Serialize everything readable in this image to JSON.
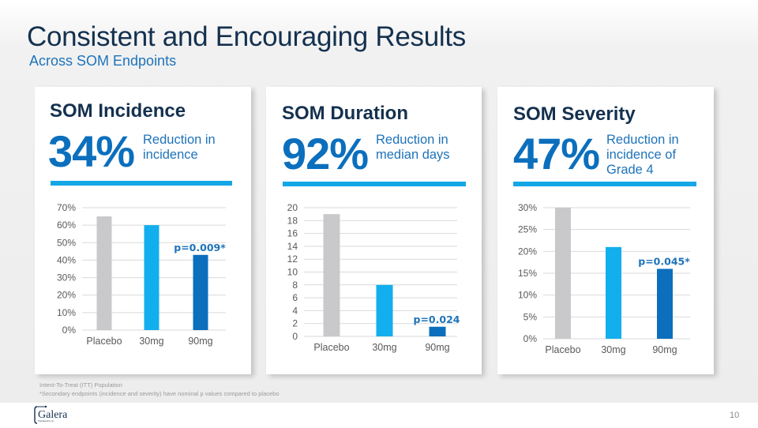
{
  "slide": {
    "title": "Consistent and Encouraging Results",
    "subtitle": "Across SOM Endpoints",
    "footnotes": [
      "Intent-To-Treat (ITT) Population",
      "*Secondary endpoints (incidence and severity) have nominal p values compared to placebo"
    ],
    "logo_text": "Galera",
    "logo_subtext": "Therapeutics, Inc.",
    "page_number": "10"
  },
  "cards": [
    {
      "title": "SOM Incidence",
      "stat": "34%",
      "stat_desc": [
        "Reduction in",
        "incidence"
      ]
    },
    {
      "title": "SOM Duration",
      "stat": "92%",
      "stat_desc": [
        "Reduction in",
        "median days"
      ]
    },
    {
      "title": "SOM Severity",
      "stat": "47%",
      "stat_desc": [
        "Reduction in",
        "incidence of",
        "Grade 4"
      ]
    }
  ],
  "colors": {
    "placebo": "#c9c9cb",
    "dose_30mg": "#13aeee",
    "dose_90mg": "#0b6fbd",
    "gridline": "#d9d9d9",
    "pvalue": "#1e73b9"
  },
  "chart_data": [
    {
      "type": "bar",
      "title": "SOM Incidence",
      "categories": [
        "Placebo",
        "30mg",
        "90mg"
      ],
      "values": [
        65,
        60,
        43
      ],
      "ylim": [
        0,
        70
      ],
      "yticks": [
        0,
        10,
        20,
        30,
        40,
        50,
        60,
        70
      ],
      "ytick_labels": [
        "0%",
        "10%",
        "20%",
        "30%",
        "40%",
        "50%",
        "60%",
        "70%"
      ],
      "unit": "%",
      "grid": true,
      "annotation": {
        "category": "90mg",
        "text": "p=0.009*"
      }
    },
    {
      "type": "bar",
      "title": "SOM Duration",
      "categories": [
        "Placebo",
        "30mg",
        "90mg"
      ],
      "values": [
        19,
        8,
        1.5
      ],
      "ylim": [
        0,
        20
      ],
      "yticks": [
        0,
        2,
        4,
        6,
        8,
        10,
        12,
        14,
        16,
        18,
        20
      ],
      "ytick_labels": [
        "0",
        "2",
        "4",
        "6",
        "8",
        "10",
        "12",
        "14",
        "16",
        "18",
        "20"
      ],
      "unit": "days",
      "grid": true,
      "annotation": {
        "category": "90mg",
        "text": "p=0.024"
      }
    },
    {
      "type": "bar",
      "title": "SOM Severity",
      "categories": [
        "Placebo",
        "30mg",
        "90mg"
      ],
      "values": [
        30,
        21,
        16
      ],
      "ylim": [
        0,
        30
      ],
      "yticks": [
        0,
        5,
        10,
        15,
        20,
        25,
        30
      ],
      "ytick_labels": [
        "0%",
        "5%",
        "10%",
        "15%",
        "20%",
        "25%",
        "30%"
      ],
      "unit": "%",
      "grid": true,
      "annotation": {
        "category": "90mg",
        "text": "p=0.045*"
      }
    }
  ]
}
